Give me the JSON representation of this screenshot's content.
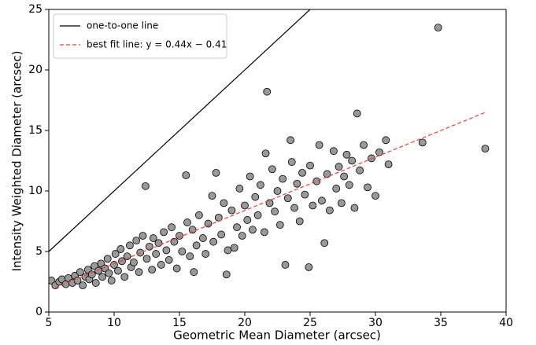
{
  "chart_data": {
    "type": "scatter",
    "xlabel": "Geometric Mean Diameter (arcsec)",
    "ylabel": "Intensity Weighted Diameter (arcsec)",
    "xlim": [
      5,
      40
    ],
    "xticks": [
      5,
      10,
      15,
      20,
      25,
      30,
      35,
      40
    ],
    "ylim": [
      0,
      25
    ],
    "yticks": [
      0,
      5,
      10,
      15,
      20,
      25
    ],
    "color": "#999999",
    "legend": "upper left",
    "x": [
      5.2,
      5.5,
      5.8,
      6.0,
      6.3,
      6.5,
      6.8,
      7.0,
      7.2,
      7.4,
      7.6,
      7.8,
      8.0,
      8.1,
      8.3,
      8.5,
      8.6,
      8.8,
      9.0,
      9.1,
      9.3,
      9.5,
      9.6,
      9.8,
      10.0,
      10.1,
      10.3,
      10.5,
      10.6,
      10.8,
      11.0,
      11.2,
      11.3,
      11.5,
      11.7,
      11.9,
      12.0,
      12.2,
      12.4,
      12.5,
      12.7,
      12.9,
      13.0,
      13.2,
      13.4,
      13.6,
      13.8,
      14.0,
      14.2,
      14.4,
      14.6,
      14.8,
      15.0,
      15.2,
      15.5,
      15.6,
      15.8,
      16.0,
      16.1,
      16.3,
      16.5,
      16.8,
      17.0,
      17.2,
      17.5,
      17.6,
      17.8,
      18.0,
      18.2,
      18.4,
      18.6,
      18.7,
      19.0,
      19.2,
      19.4,
      19.6,
      19.8,
      20.0,
      20.2,
      20.4,
      20.6,
      20.8,
      21.0,
      21.2,
      21.5,
      21.6,
      21.7,
      21.9,
      22.1,
      22.3,
      22.5,
      22.7,
      22.9,
      23.1,
      23.3,
      23.5,
      23.6,
      23.8,
      24.0,
      24.2,
      24.4,
      24.6,
      24.9,
      25.0,
      25.2,
      25.5,
      25.7,
      25.9,
      26.1,
      26.3,
      26.5,
      26.8,
      27.0,
      27.2,
      27.4,
      27.6,
      27.8,
      28.0,
      28.2,
      28.4,
      28.6,
      28.8,
      29.1,
      29.4,
      29.7,
      30.0,
      30.3,
      30.8,
      31.0,
      33.6,
      34.8,
      38.4
    ],
    "values": [
      2.6,
      2.2,
      2.5,
      2.7,
      2.3,
      2.8,
      2.4,
      3.0,
      2.6,
      3.3,
      2.2,
      2.9,
      3.5,
      2.7,
      3.1,
      3.8,
      2.4,
      3.4,
      4.0,
      2.9,
      3.6,
      4.4,
      3.2,
      2.6,
      3.9,
      4.8,
      3.4,
      5.2,
      4.2,
      2.9,
      4.6,
      5.5,
      3.7,
      4.1,
      5.9,
      3.3,
      4.9,
      6.3,
      10.4,
      4.4,
      5.4,
      3.5,
      6.1,
      4.8,
      5.7,
      3.9,
      6.6,
      5.1,
      4.3,
      7.0,
      5.8,
      3.6,
      6.3,
      5.0,
      11.3,
      7.4,
      4.6,
      6.8,
      3.3,
      5.5,
      8.0,
      6.1,
      4.8,
      7.3,
      9.6,
      5.8,
      11.5,
      7.8,
      6.4,
      9.0,
      3.1,
      5.1,
      8.4,
      5.3,
      7.0,
      10.2,
      6.3,
      8.8,
      7.6,
      11.2,
      6.8,
      9.5,
      8.0,
      10.5,
      6.6,
      13.1,
      18.2,
      9.0,
      11.8,
      8.3,
      10.0,
      7.2,
      11.0,
      3.9,
      9.4,
      14.2,
      12.4,
      8.6,
      10.6,
      7.5,
      11.5,
      9.7,
      3.7,
      12.1,
      8.8,
      10.8,
      13.8,
      9.2,
      5.7,
      11.4,
      8.4,
      13.3,
      10.2,
      12.0,
      9.0,
      11.2,
      13.0,
      10.5,
      12.5,
      8.6,
      16.4,
      11.7,
      13.8,
      10.3,
      12.7,
      9.6,
      13.2,
      14.2,
      12.2,
      14.0,
      23.5,
      13.5
    ],
    "lines": [
      {
        "name": "one-to-one line",
        "color": "#000000",
        "style": "solid",
        "x": [
          5,
          25
        ],
        "values": [
          5,
          25
        ]
      },
      {
        "name": "best fit line: y = 0.44x − 0.41",
        "color": "#e8403c",
        "style": "dashed",
        "x": [
          5.5,
          38.5
        ],
        "values": [
          2.01,
          16.53
        ]
      }
    ]
  }
}
